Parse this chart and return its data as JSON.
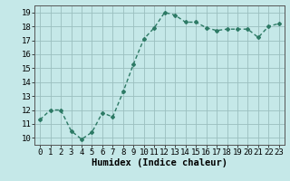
{
  "x": [
    0,
    1,
    2,
    3,
    4,
    5,
    6,
    7,
    8,
    9,
    10,
    11,
    12,
    13,
    14,
    15,
    16,
    17,
    18,
    19,
    20,
    21,
    22,
    23
  ],
  "y": [
    11.3,
    12.0,
    12.0,
    10.5,
    9.9,
    10.4,
    11.8,
    11.5,
    13.3,
    15.3,
    17.1,
    17.9,
    19.0,
    18.8,
    18.3,
    18.3,
    17.9,
    17.7,
    17.8,
    17.8,
    17.8,
    17.2,
    18.0,
    18.2
  ],
  "xlabel": "Humidex (Indice chaleur)",
  "xlim": [
    -0.5,
    23.5
  ],
  "ylim": [
    9.5,
    19.5
  ],
  "yticks": [
    10,
    11,
    12,
    13,
    14,
    15,
    16,
    17,
    18,
    19
  ],
  "xticks": [
    0,
    1,
    2,
    3,
    4,
    5,
    6,
    7,
    8,
    9,
    10,
    11,
    12,
    13,
    14,
    15,
    16,
    17,
    18,
    19,
    20,
    21,
    22,
    23
  ],
  "xtick_labels": [
    "0",
    "1",
    "2",
    "3",
    "4",
    "5",
    "6",
    "7",
    "8",
    "9",
    "10",
    "11",
    "12",
    "13",
    "14",
    "15",
    "16",
    "17",
    "18",
    "19",
    "20",
    "21",
    "22",
    "23"
  ],
  "line_color": "#2d7a65",
  "marker": "D",
  "marker_size": 2.0,
  "bg_color": "#c5e8e8",
  "grid_color": "#9bbfbf",
  "xlabel_fontsize": 7.5,
  "tick_fontsize": 6.5,
  "line_width": 1.0
}
